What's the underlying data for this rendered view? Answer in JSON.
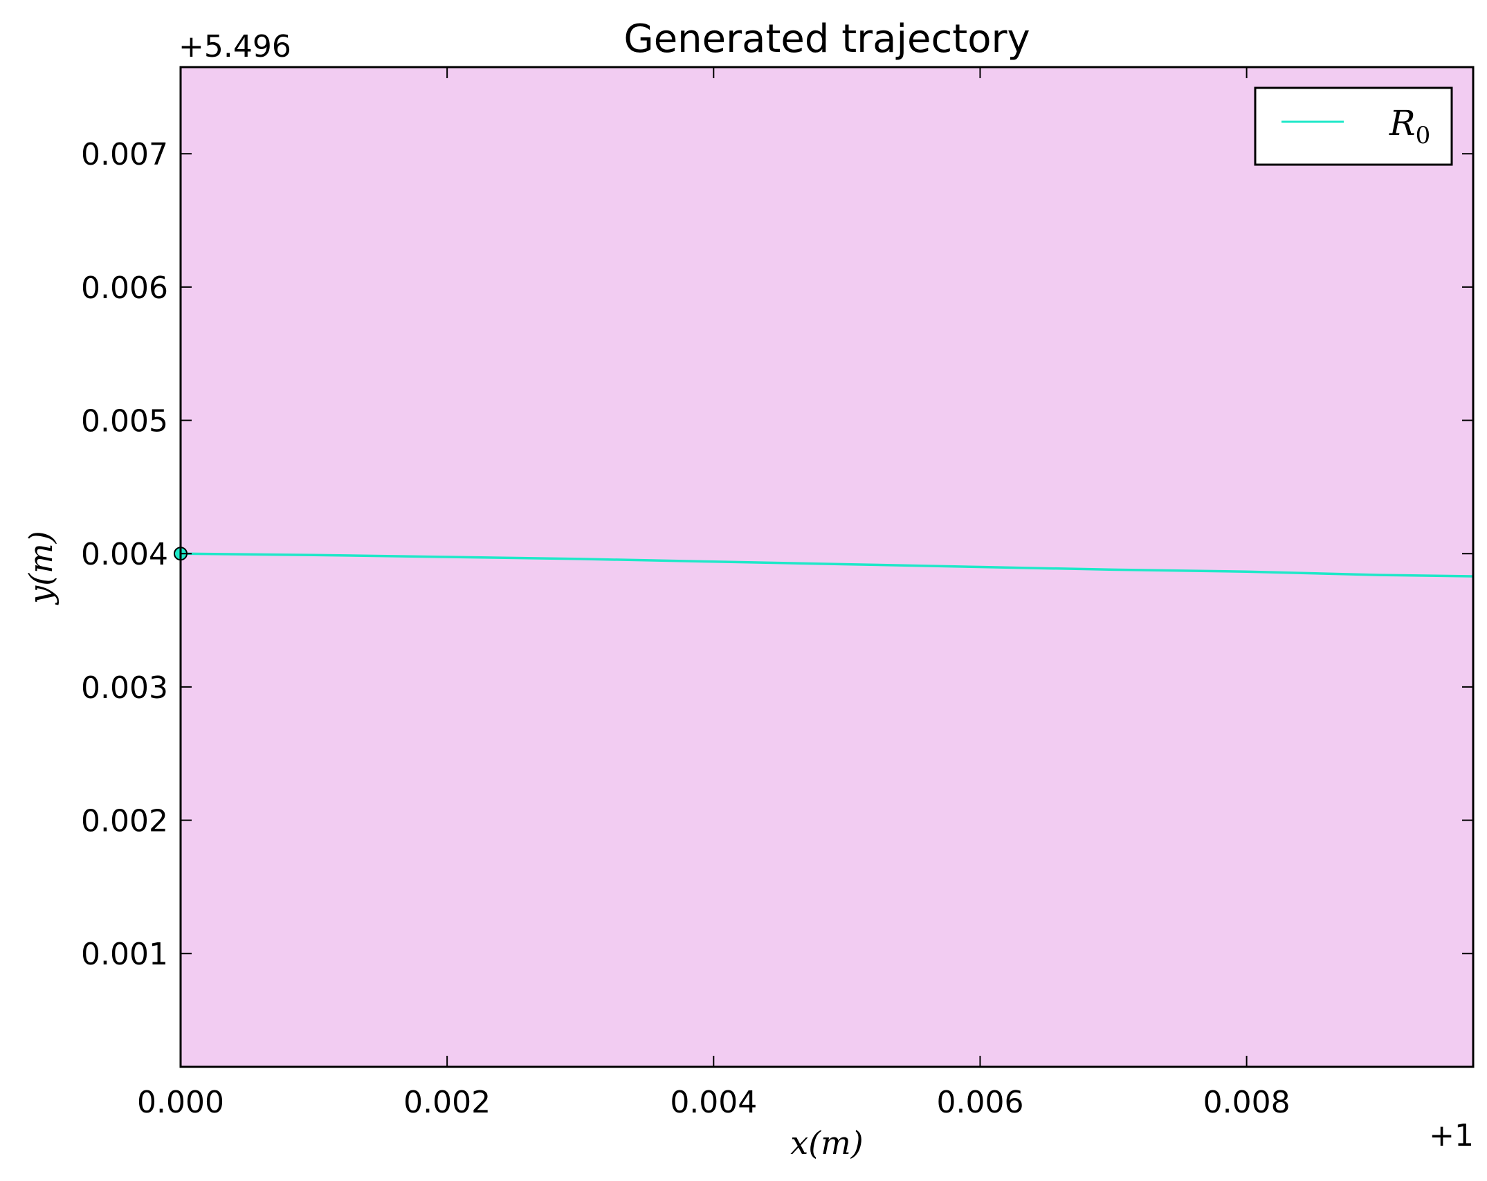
{
  "chart_data": {
    "type": "line",
    "title": "Generated trajectory",
    "xlabel": "x(m)",
    "ylabel": "y(m)",
    "x_offset_label": "+1",
    "y_offset_label": "+5.496",
    "xlim": [
      0.0,
      0.0097
    ],
    "ylim": [
      0.00015,
      0.00765
    ],
    "xticks": [
      0.0,
      0.002,
      0.004,
      0.006,
      0.008
    ],
    "xtick_labels": [
      "0.000",
      "0.002",
      "0.004",
      "0.006",
      "0.008"
    ],
    "yticks": [
      0.001,
      0.002,
      0.003,
      0.004,
      0.005,
      0.006,
      0.007
    ],
    "ytick_labels": [
      "0.001",
      "0.002",
      "0.003",
      "0.004",
      "0.005",
      "0.006",
      "0.007"
    ],
    "grid": false,
    "background_color": "#f2ccf2",
    "legend_position": "top-right",
    "series": [
      {
        "name": "R",
        "name_subscript": "0",
        "color": "#1ee8c8",
        "x": [
          0.0,
          0.001,
          0.002,
          0.003,
          0.004,
          0.005,
          0.006,
          0.007,
          0.008,
          0.009,
          0.0097
        ],
        "y": [
          0.004,
          0.00399,
          0.003975,
          0.00396,
          0.00394,
          0.00392,
          0.0039,
          0.00388,
          0.003865,
          0.00384,
          0.00383
        ]
      }
    ],
    "start_marker": {
      "x": 0.0,
      "y": 0.004
    }
  }
}
